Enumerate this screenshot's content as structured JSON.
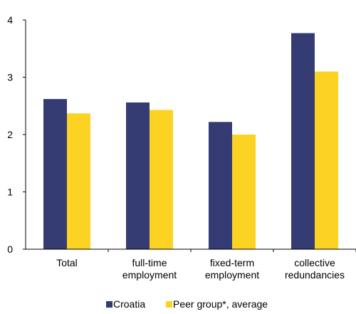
{
  "chart_data": {
    "type": "bar",
    "title": "",
    "xlabel": "",
    "ylabel": "",
    "ylim": [
      0,
      4
    ],
    "yticks": [
      0,
      1,
      2,
      3,
      4
    ],
    "grid": false,
    "legend_position": "bottom",
    "categories": [
      [
        "Total"
      ],
      [
        "full-time",
        "employment"
      ],
      [
        "fixed-term",
        "employment"
      ],
      [
        "collective",
        "redundancies"
      ]
    ],
    "series": [
      {
        "name": "Croatia",
        "color": "#353B73",
        "values": [
          2.62,
          2.56,
          2.22,
          3.77
        ]
      },
      {
        "name": "Peer group*, average",
        "color": "#FDD323",
        "values": [
          2.37,
          2.43,
          2.0,
          3.1
        ]
      }
    ]
  }
}
